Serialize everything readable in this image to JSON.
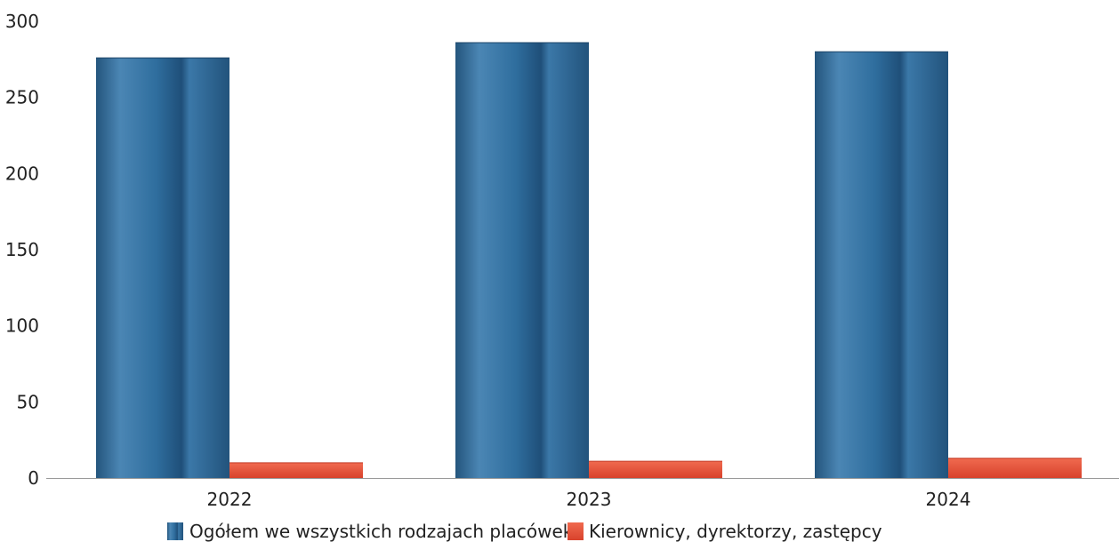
{
  "chart_data": {
    "type": "bar",
    "title": "",
    "xlabel": "",
    "ylabel": "",
    "categories": [
      "2022",
      "2023",
      "2024"
    ],
    "series": [
      {
        "name": "Ogółem we wszystkich rodzajach placówek",
        "values": [
          276,
          286,
          280
        ],
        "color": "#2f6e9e"
      },
      {
        "name": "Kierownicy, dyrektorzy, zastępcy",
        "values": [
          10,
          11,
          13
        ],
        "color": "#e0503a"
      }
    ],
    "ylim": [
      0,
      300
    ],
    "yticks": [
      0,
      50,
      100,
      150,
      200,
      250,
      300
    ],
    "grid": false,
    "legend": "bottom-center"
  }
}
